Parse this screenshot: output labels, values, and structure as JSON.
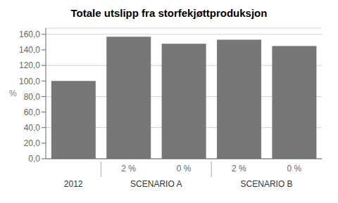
{
  "chart_data": {
    "type": "bar",
    "title": "Totale utslipp fra storfekjøttproduksjon",
    "ylabel": "%",
    "categories": [
      null,
      "2 %",
      "0 %",
      "2 %",
      "0 %"
    ],
    "groups": [
      "2012",
      "SCENARIO A",
      "SCENARIO A",
      "SCENARIO B",
      "SCENARIO B"
    ],
    "values": [
      100.0,
      157.0,
      148.0,
      153.0,
      145.0
    ],
    "color": "#777777",
    "ylim": [
      0,
      168
    ],
    "yticks": [
      {
        "value": 0.0,
        "label": "0,0"
      },
      {
        "value": 20.0,
        "label": "20,0"
      },
      {
        "value": 40.0,
        "label": "40,0"
      },
      {
        "value": 60.0,
        "label": "60,0"
      },
      {
        "value": 80.0,
        "label": "80,0"
      },
      {
        "value": 100.0,
        "label": "100,0"
      },
      {
        "value": 120.0,
        "label": "120,0"
      },
      {
        "value": 140.0,
        "label": "140,0"
      },
      {
        "value": 160.0,
        "label": "160,0"
      }
    ],
    "grid": true
  }
}
